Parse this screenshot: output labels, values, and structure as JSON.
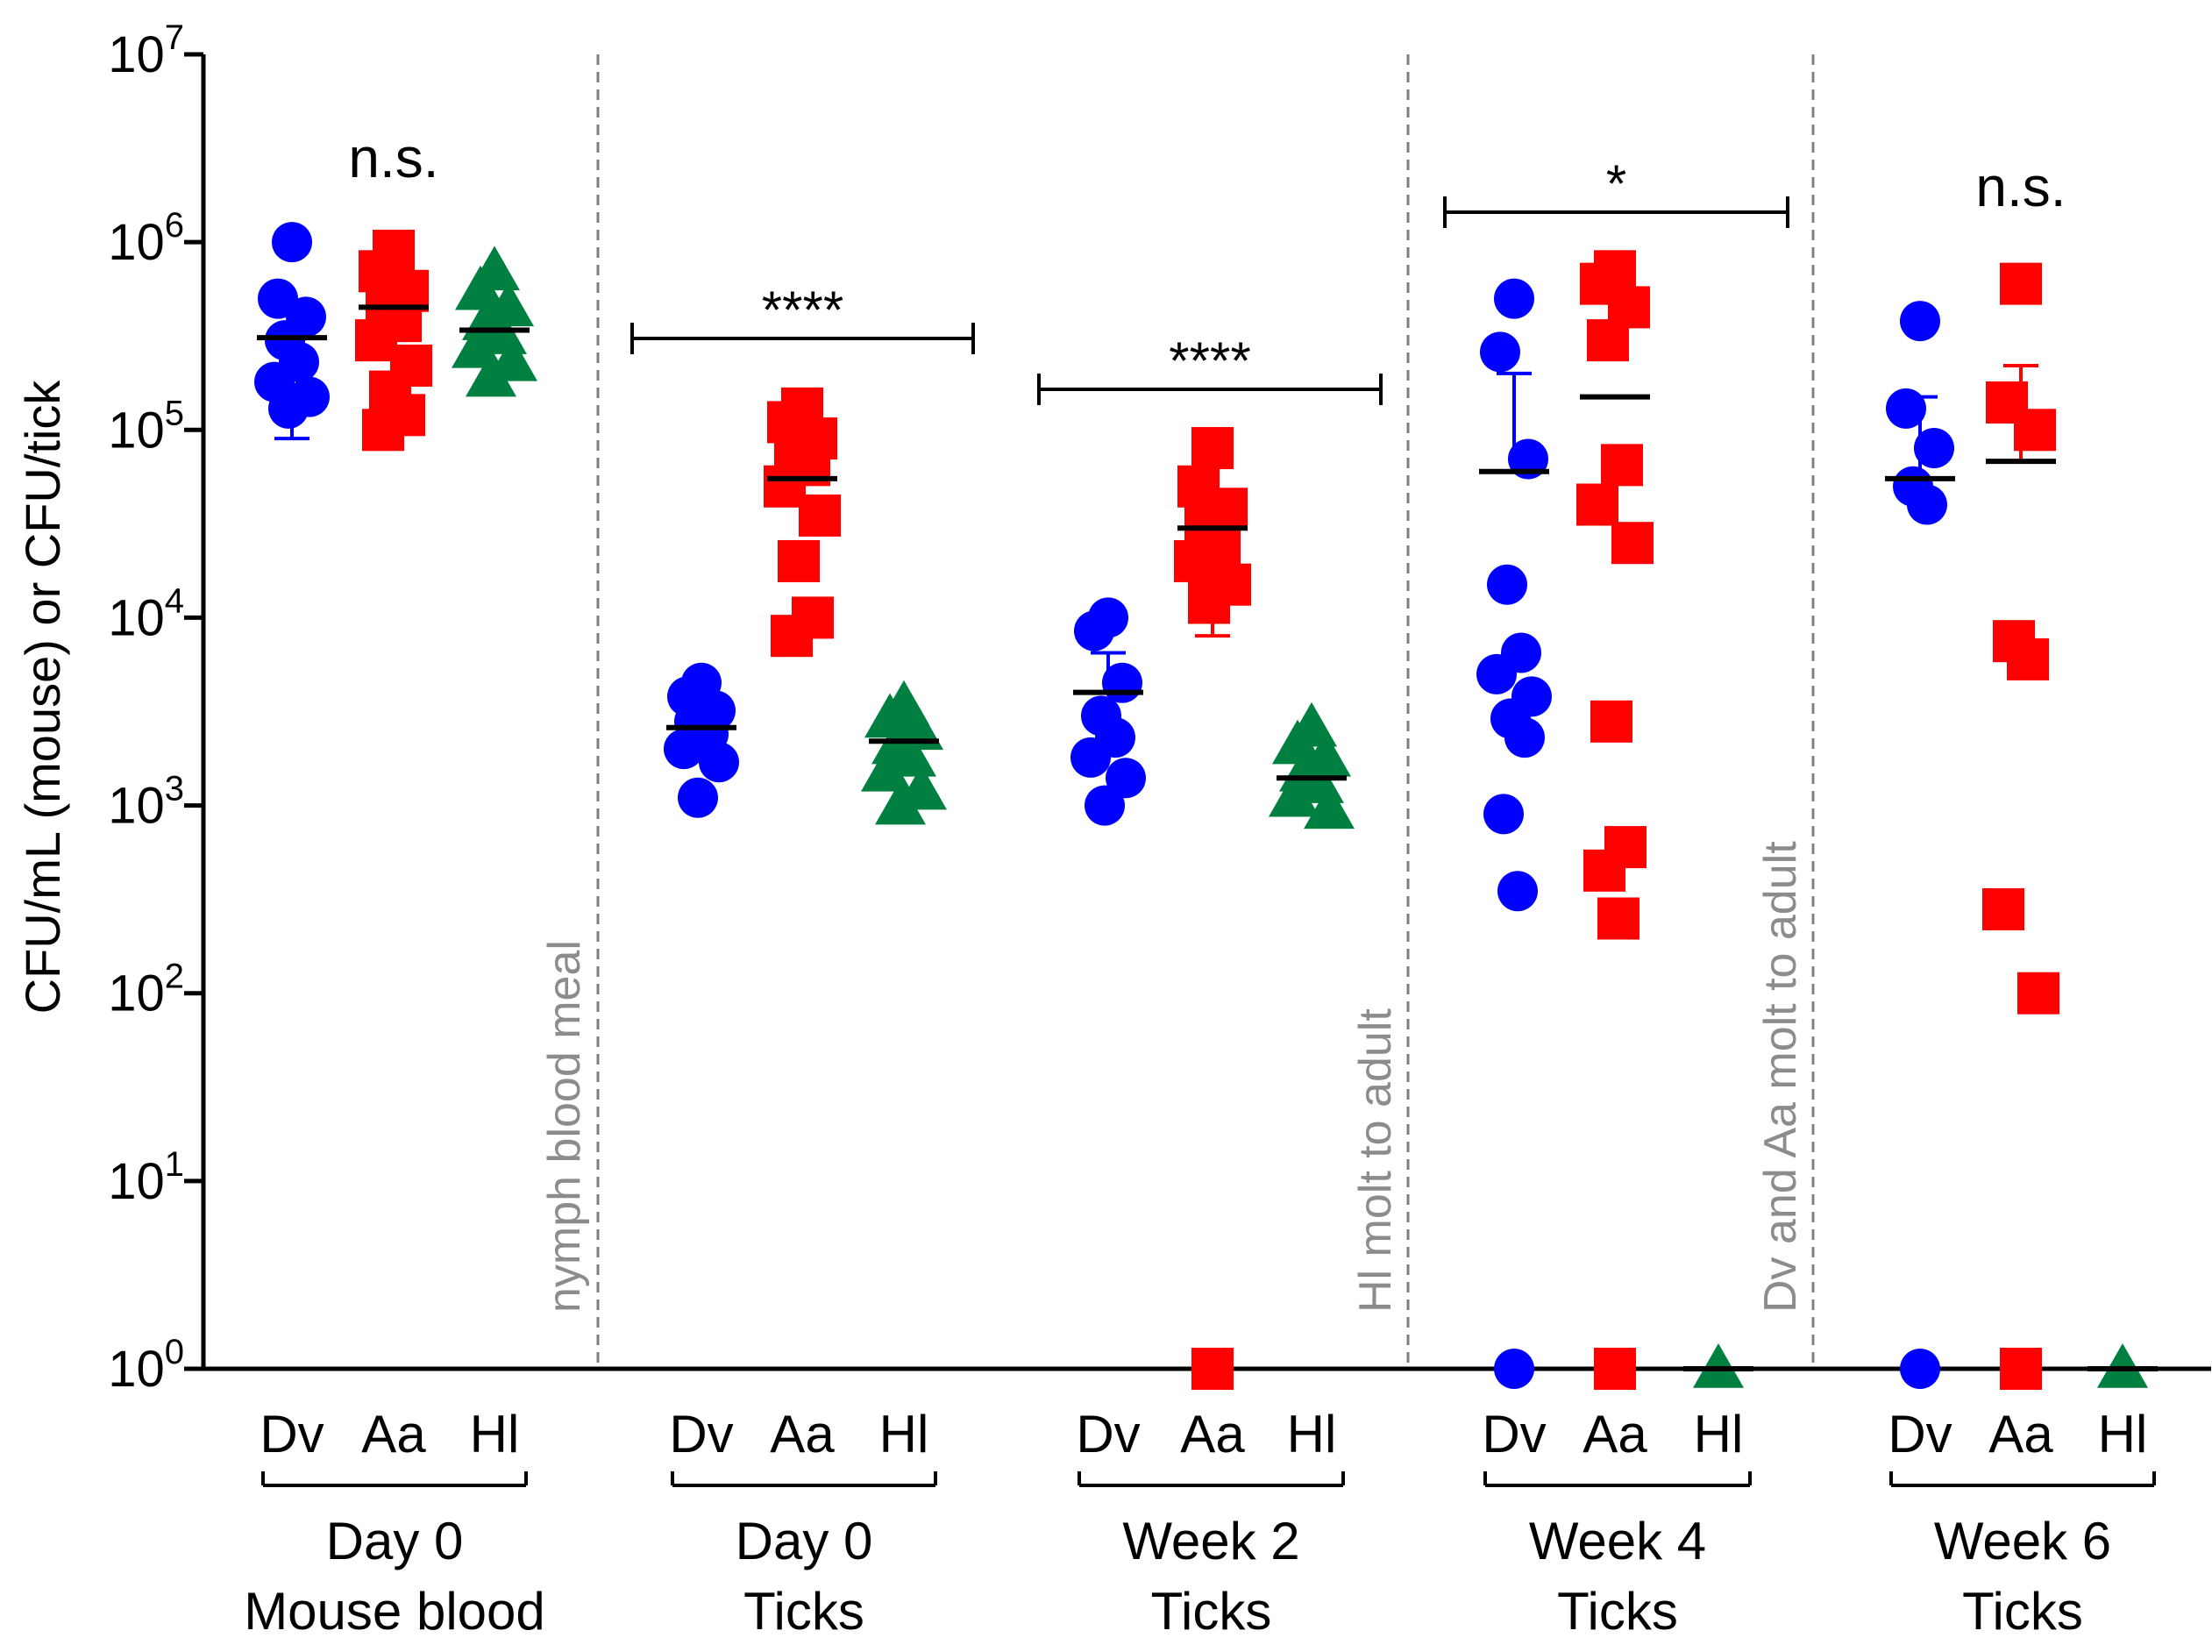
{
  "chart_data": {
    "type": "scatter",
    "title": "",
    "ylabel": "CFU/mL (mouse) or CFU/tick",
    "xlabel": "",
    "yscale": "log10",
    "ylim": [
      1,
      10000000
    ],
    "y_ticks": [
      {
        "exp": "0",
        "value": 1
      },
      {
        "exp": "1",
        "value": 10
      },
      {
        "exp": "2",
        "value": 100
      },
      {
        "exp": "3",
        "value": 1000
      },
      {
        "exp": "4",
        "value": 10000
      },
      {
        "exp": "5",
        "value": 100000
      },
      {
        "exp": "6",
        "value": 1000000
      },
      {
        "exp": "7",
        "value": 10000000
      }
    ],
    "tick_base": "10",
    "legend": "none",
    "series_styles": {
      "Dv": {
        "color": "#0000ff",
        "marker": "circle"
      },
      "Aa": {
        "color": "#ff0000",
        "marker": "square"
      },
      "Hl": {
        "color": "#008040",
        "marker": "triangle"
      }
    },
    "groups": [
      {
        "line1": "Day 0",
        "line2": "Mouse blood",
        "significance": "n.s.",
        "sig_style": "text",
        "series": [
          {
            "name": "Dv",
            "mean": 310000,
            "error_low": 90000,
            "error_high": null,
            "values": [
              1000000,
              500000,
              400000,
              300000,
              230000,
              180000,
              150000,
              130000
            ]
          },
          {
            "name": "Aa",
            "mean": 450000,
            "error_low": null,
            "error_high": null,
            "values": [
              900000,
              700000,
              550000,
              450000,
              380000,
              300000,
              220000,
              160000,
              120000,
              100000
            ]
          },
          {
            "name": "Hl",
            "mean": 340000,
            "error_low": null,
            "error_high": null,
            "values": [
              700000,
              550000,
              450000,
              380000,
              320000,
              270000,
              230000,
              190000
            ]
          }
        ]
      },
      {
        "line1": "Day 0",
        "line2": "Ticks",
        "significance": "****",
        "sig_style": "bracket",
        "series": [
          {
            "name": "Dv",
            "mean": 2600,
            "error_low": null,
            "error_high": null,
            "values": [
              4500,
              3800,
              3200,
              2800,
              2400,
              2000,
              1700,
              1100
            ]
          },
          {
            "name": "Aa",
            "mean": 55000,
            "error_low": null,
            "error_high": null,
            "values": [
              130000,
              110000,
              90000,
              75000,
              65000,
              50000,
              35000,
              20000,
              10000,
              8000
            ]
          },
          {
            "name": "Hl",
            "mean": 2200,
            "error_low": null,
            "error_high": null,
            "values": [
              3400,
              2900,
              2500,
              2100,
              1800,
              1500,
              1200,
              1000
            ]
          }
        ]
      },
      {
        "line1": "Week 2",
        "line2": "Ticks",
        "significance": "****",
        "sig_style": "bracket",
        "series": [
          {
            "name": "Dv",
            "mean": 4000,
            "error_low": null,
            "error_high": 6500,
            "values": [
              10000,
              8500,
              4500,
              3000,
              2300,
              1800,
              1400,
              1000
            ]
          },
          {
            "name": "Aa",
            "mean": 30000,
            "error_low": 8000,
            "error_high": null,
            "values": [
              80000,
              50000,
              38000,
              30000,
              25000,
              20000,
              15000,
              12000,
              1
            ]
          },
          {
            "name": "Hl",
            "mean": 1400,
            "error_low": null,
            "error_high": null,
            "values": [
              2600,
              2100,
              1800,
              1500,
              1300,
              1100,
              950
            ]
          }
        ]
      },
      {
        "line1": "Week 4",
        "line2": "Ticks",
        "significance": "*",
        "sig_style": "bracket",
        "series": [
          {
            "name": "Dv",
            "mean": 60000,
            "error_low": null,
            "error_high": 200000,
            "values": [
              500000,
              260000,
              70000,
              15000,
              6500,
              5000,
              3800,
              2900,
              2300,
              900,
              350,
              1
            ]
          },
          {
            "name": "Aa",
            "mean": 150000,
            "error_low": null,
            "error_high": null,
            "values": [
              700000,
              600000,
              450000,
              300000,
              65000,
              40000,
              25000,
              2800,
              600,
              450,
              250,
              1
            ]
          },
          {
            "name": "Hl",
            "mean": 1,
            "error_low": null,
            "error_high": null,
            "values": [
              1
            ]
          }
        ]
      },
      {
        "line1": "Week 6",
        "line2": "Ticks",
        "significance": "n.s.",
        "sig_style": "text",
        "series": [
          {
            "name": "Dv",
            "mean": 55000,
            "error_low": null,
            "error_high": 150000,
            "values": [
              380000,
              130000,
              80000,
              50000,
              40000,
              1
            ]
          },
          {
            "name": "Aa",
            "mean": 68000,
            "error_low": null,
            "error_high": 220000,
            "values": [
              600000,
              140000,
              100000,
              7500,
              6000,
              280,
              100,
              1
            ]
          },
          {
            "name": "Hl",
            "mean": 1,
            "error_low": null,
            "error_high": null,
            "values": [
              1
            ]
          }
        ]
      }
    ],
    "period_annotations": [
      {
        "text": "nymph blood meal"
      },
      {
        "text": "Hl molt to adult"
      },
      {
        "text": "Dv and Aa molt to adult"
      }
    ]
  }
}
